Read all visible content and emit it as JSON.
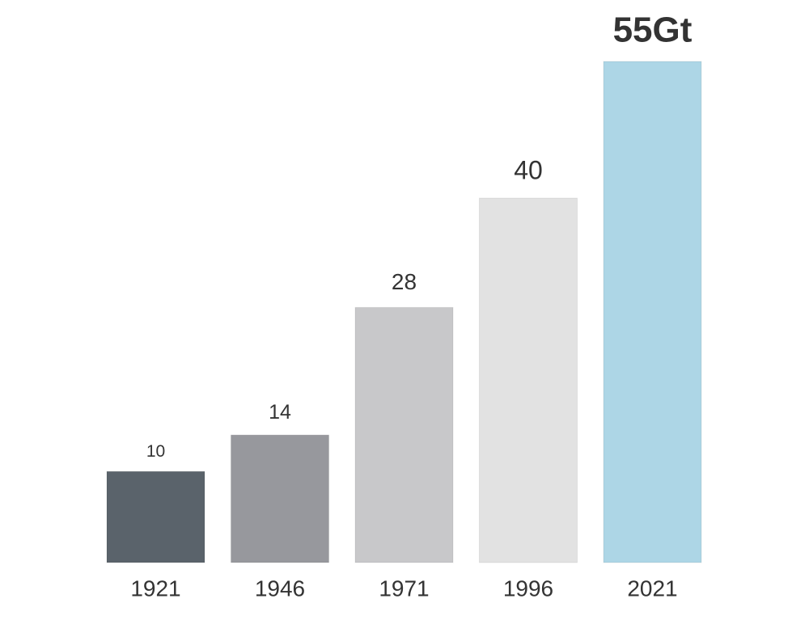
{
  "chart_data": {
    "type": "bar",
    "categories": [
      "1921",
      "1946",
      "1971",
      "1996",
      "2021"
    ],
    "values": [
      10,
      14,
      28,
      40,
      55
    ],
    "value_labels": [
      "10",
      "14",
      "28",
      "40",
      "55Gt"
    ],
    "colors": [
      "#5a636b",
      "#97989d",
      "#c8c8ca",
      "#e2e2e2",
      "#add6e6"
    ]
  }
}
